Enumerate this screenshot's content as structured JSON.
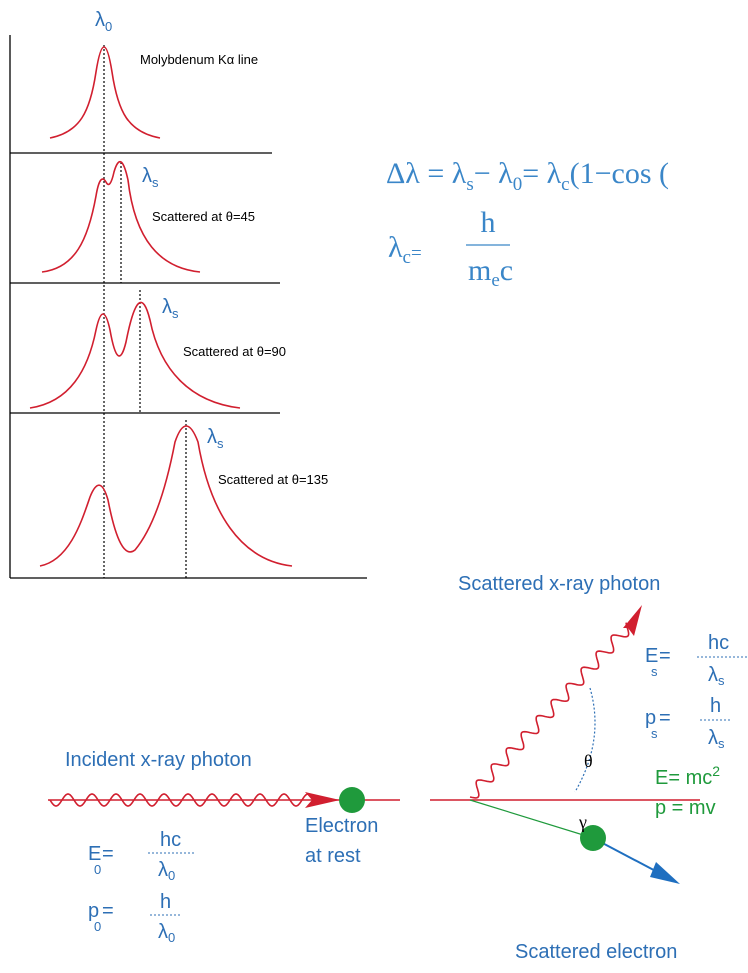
{
  "spectra": {
    "reference": {
      "symbol": "λ",
      "sub": "0"
    },
    "panels": [
      {
        "label": "Molybdenum Kα line"
      },
      {
        "peak": {
          "symbol": "λ",
          "sub": "s"
        },
        "label": "Scattered at θ=45"
      },
      {
        "peak": {
          "symbol": "λ",
          "sub": "s"
        },
        "label": "Scattered at θ=90"
      },
      {
        "peak": {
          "symbol": "λ",
          "sub": "s"
        },
        "label": "Scattered at θ=135"
      }
    ]
  },
  "equations": {
    "shift": {
      "parts": [
        "Δλ = λ",
        "s",
        "− λ",
        "0",
        "= λ",
        "c",
        "(1−cos ("
      ]
    },
    "compton": {
      "lhs": "λ",
      "lhs_sub": "c",
      "eq": "=",
      "numerator": "h",
      "denominator": "m",
      "denominator_sub": "e",
      "denominator_end": "c"
    }
  },
  "incident": {
    "title": "Incident x-ray photon",
    "energy": {
      "symbol": "E",
      "sub": "0",
      "eq": "=",
      "numerator": "hc",
      "denominator": "λ",
      "denominator_sub": "0"
    },
    "momentum": {
      "symbol": "p",
      "sub": "0",
      "eq": "=",
      "numerator": "h",
      "denominator": "λ",
      "denominator_sub": "0"
    }
  },
  "electron": {
    "label_lines": [
      "Electron",
      "at rest"
    ]
  },
  "scattered": {
    "photon_title": "Scattered x-ray photon",
    "energy": {
      "symbol": "E",
      "sub": "s",
      "eq": "=",
      "numerator": "hc",
      "denominator": "λ",
      "denominator_sub": "s"
    },
    "momentum": {
      "symbol": "p",
      "sub": "s",
      "eq": "=",
      "numerator": "h",
      "denominator": "λ",
      "denominator_sub": "s"
    },
    "angle_photon": "θ",
    "angle_electron": "γ",
    "electron_energy": "E= mc",
    "electron_energy_sup": "2",
    "electron_momentum": "p = mv",
    "electron_title": "Scattered electron"
  }
}
